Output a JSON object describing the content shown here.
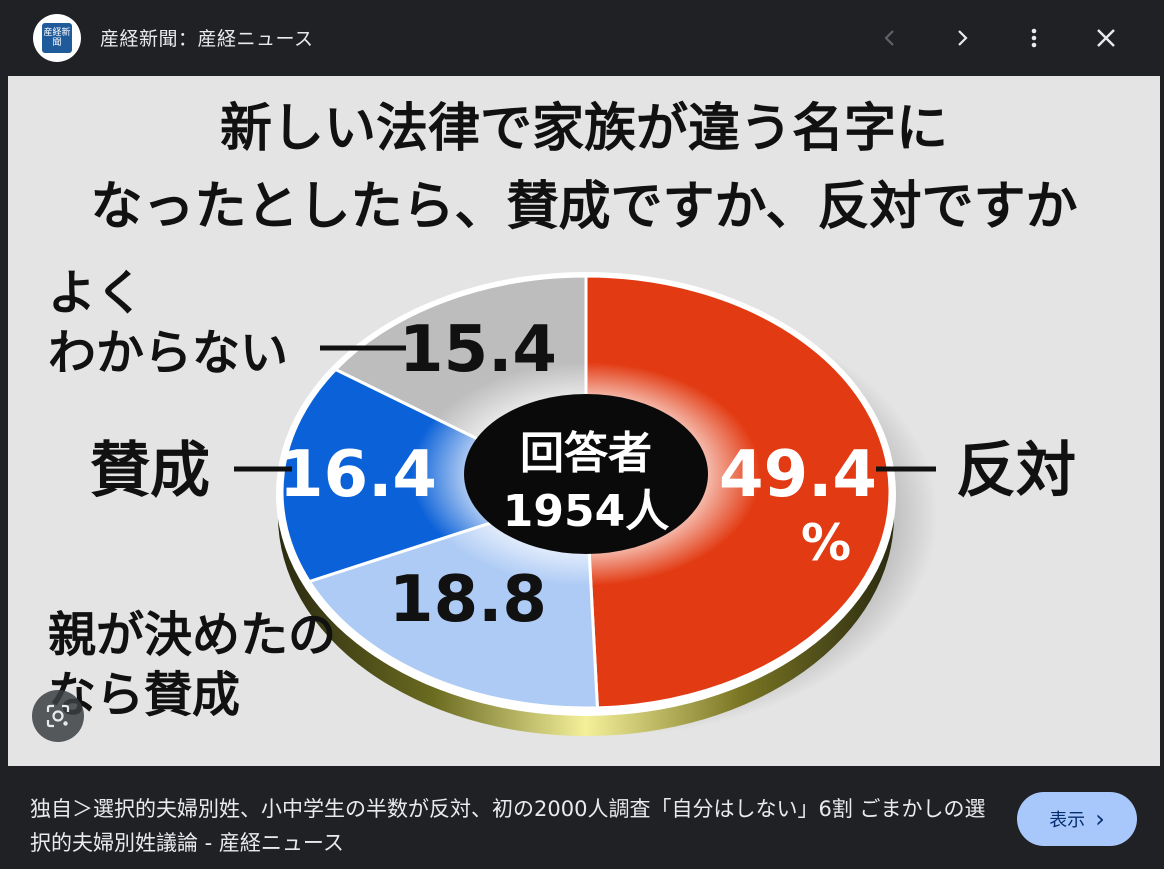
{
  "header": {
    "site_name": "産経新聞：産経ニュース",
    "logo_text": "産経新聞"
  },
  "chart": {
    "title_line1": "新しい法律で家族が違う名字に",
    "title_line2": "なったとしたら、賛成ですか、反対ですか",
    "center_line1": "回答者",
    "center_line2": "1954人",
    "percent_sign": "%"
  },
  "chart_data": {
    "type": "pie",
    "title": "新しい法律で家族が違う名字になったとしたら、賛成ですか、反対ですか",
    "slices": [
      {
        "label": "反対",
        "value": 49.4,
        "display": "49.4",
        "color": "#e23a12"
      },
      {
        "label": "親が決めたのなら賛成",
        "value": 18.8,
        "display": "18.8",
        "color": "#aecbf5"
      },
      {
        "label": "賛成",
        "value": 16.4,
        "display": "16.4",
        "color": "#0b61d8"
      },
      {
        "label": "よくわからない",
        "value": 15.4,
        "display": "15.4",
        "color": "#bdbdbd"
      }
    ],
    "label_lines": {
      "oppose": "反対",
      "support": "賛成",
      "unsure_1": "よく",
      "unsure_2": "わからない",
      "parents_1": "親が決めたの",
      "parents_2": "なら賛成"
    }
  },
  "footer": {
    "caption": "独自＞選択的夫婦別姓、小中学生の半数が反対、初の2000人調査「自分はしない」6割 ごまかしの選択的夫婦別姓議論 - 産経ニュース",
    "show_label": "表示",
    "show_chevron": "›"
  },
  "icons": [
    "back-icon",
    "forward-icon",
    "more-vert-icon",
    "close-icon",
    "lens-icon",
    "chevron-right-icon"
  ]
}
